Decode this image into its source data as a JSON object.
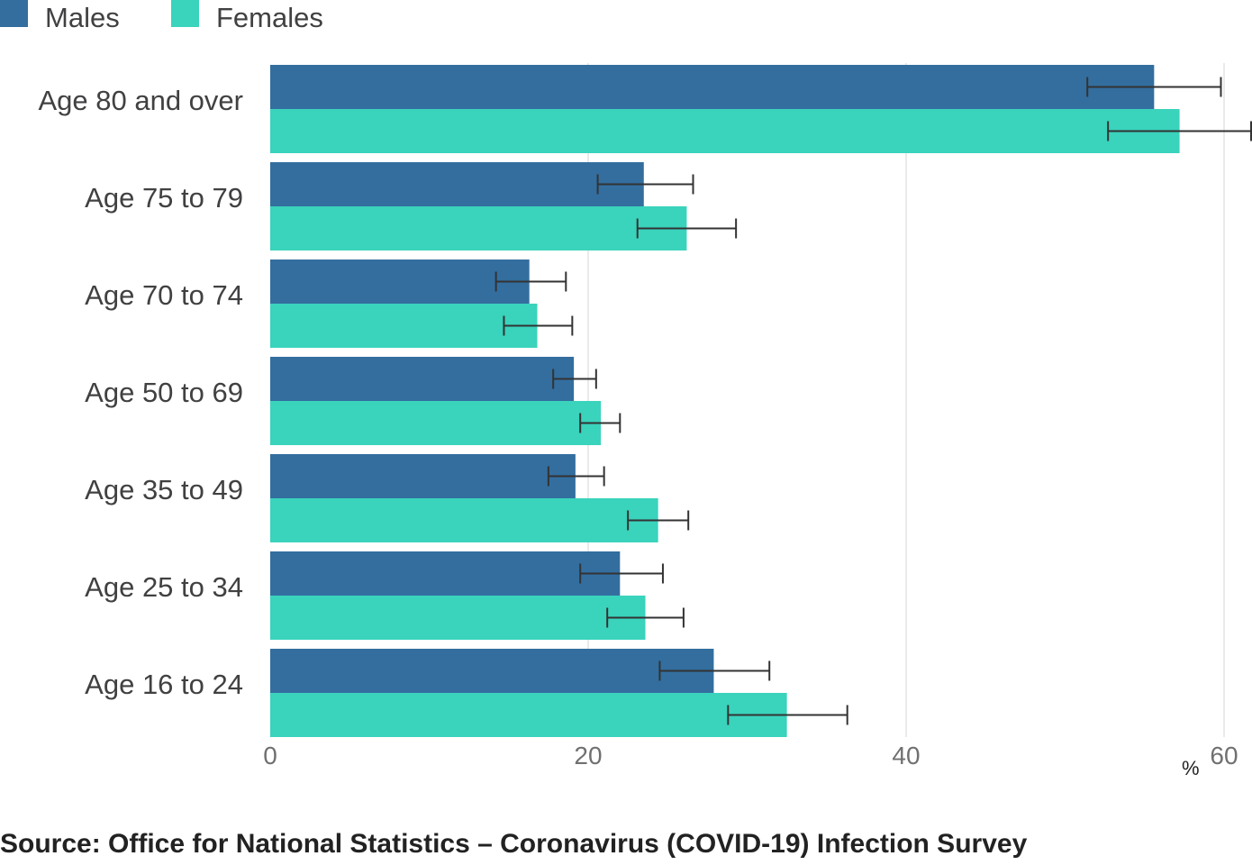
{
  "chart_data": {
    "type": "bar",
    "orientation": "horizontal",
    "categories": [
      "Age 80 and over",
      "Age 75 to 79",
      "Age 70 to 74",
      "Age 50 to 69",
      "Age 35 to 49",
      "Age 25 to 34",
      "Age 16 to 24"
    ],
    "series": [
      {
        "name": "Males",
        "color": "#336e9f",
        "values": [
          55.6,
          23.5,
          16.3,
          19.1,
          19.2,
          22.0,
          27.9
        ],
        "error_low": [
          51.4,
          20.6,
          14.2,
          17.8,
          17.5,
          19.5,
          24.5
        ],
        "error_high": [
          59.8,
          26.6,
          18.6,
          20.5,
          21.0,
          24.7,
          31.4
        ]
      },
      {
        "name": "Females",
        "color": "#3ad3bc",
        "values": [
          57.2,
          26.2,
          16.8,
          20.8,
          24.4,
          23.6,
          32.5
        ],
        "error_low": [
          52.7,
          23.1,
          14.7,
          19.5,
          22.5,
          21.2,
          28.8
        ],
        "error_high": [
          61.7,
          29.3,
          19.0,
          22.0,
          26.3,
          26.0,
          36.3
        ]
      }
    ],
    "xlim": [
      0,
      61.7
    ],
    "xticks": [
      "0",
      "20",
      "40",
      "60"
    ],
    "tick_values": [
      0,
      20,
      40,
      60
    ],
    "unit_label": "%",
    "legend_position": "top-left",
    "grid": "vertical",
    "source": "Source: Office for National Statistics – Coronavirus (COVID-19) Infection Survey"
  }
}
